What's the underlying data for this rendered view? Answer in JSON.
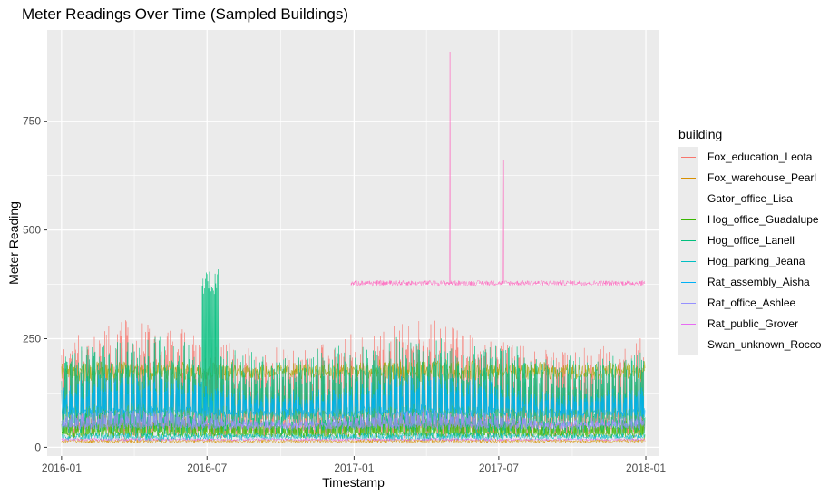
{
  "chart_data": {
    "type": "line",
    "title": "Meter Readings Over Time (Sampled Buildings)",
    "xlabel": "Timestamp",
    "ylabel": "Meter Reading",
    "x_ticks": [
      "2016-01",
      "2016-07",
      "2017-01",
      "2017-07",
      "2018-01"
    ],
    "y_ticks": [
      0,
      250,
      500,
      750
    ],
    "xlim": [
      "2015-12-14",
      "2018-01-18"
    ],
    "ylim": [
      -20,
      960
    ],
    "grid": true,
    "legend_title": "building",
    "legend_position": "right",
    "series": [
      {
        "name": "Fox_education_Leota",
        "color": "#F8766D",
        "start": "2016-01-01",
        "end": "2017-12-31",
        "base": 30,
        "amp": 225,
        "noise": 25,
        "weekly": true,
        "seasonal": 0.15,
        "spike": null
      },
      {
        "name": "Fox_warehouse_Pearl",
        "color": "#D89000",
        "start": "2016-01-01",
        "end": "2017-12-31",
        "base": 15,
        "amp": 8,
        "noise": 4,
        "weekly": false,
        "seasonal": 0.1,
        "spike": null
      },
      {
        "name": "Gator_office_Lisa",
        "color": "#A3A500",
        "start": "2016-01-01",
        "end": "2017-12-31",
        "base": 175,
        "amp": 35,
        "noise": 15,
        "weekly": false,
        "seasonal": 0.2,
        "spike": null
      },
      {
        "name": "Hog_office_Guadalupe",
        "color": "#39B600",
        "start": "2016-01-01",
        "end": "2017-12-31",
        "base": 25,
        "amp": 45,
        "noise": 10,
        "weekly": true,
        "seasonal": 0.3,
        "spike": null
      },
      {
        "name": "Hog_office_Lanell",
        "color": "#00BF7D",
        "start": "2016-01-01",
        "end": "2017-12-31",
        "base": 40,
        "amp": 190,
        "noise": 30,
        "weekly": true,
        "seasonal": 0.1,
        "spike": {
          "date": "2016-06-25",
          "days": 20,
          "value": 410
        }
      },
      {
        "name": "Hog_parking_Jeana",
        "color": "#00BFC4",
        "start": "2016-01-01",
        "end": "2017-12-31",
        "base": 25,
        "amp": 15,
        "noise": 5,
        "weekly": false,
        "seasonal": 0.2,
        "spike": null
      },
      {
        "name": "Rat_assembly_Aisha",
        "color": "#00B0F6",
        "start": "2016-01-01",
        "end": "2017-12-31",
        "base": 75,
        "amp": 70,
        "noise": 20,
        "weekly": true,
        "seasonal": 0.35,
        "spike": null
      },
      {
        "name": "Rat_office_Ashlee",
        "color": "#9590FF",
        "start": "2016-01-01",
        "end": "2017-12-31",
        "base": 45,
        "amp": 30,
        "noise": 10,
        "weekly": true,
        "seasonal": 0.4,
        "spike": null
      },
      {
        "name": "Rat_public_Grover",
        "color": "#E76BF3",
        "start": "2016-01-01",
        "end": "2017-12-31",
        "base": 18,
        "amp": 5,
        "noise": 3,
        "weekly": false,
        "seasonal": 0.1,
        "spike": null
      },
      {
        "name": "Swan_unknown_Rocco",
        "color": "#FF62BC",
        "start": "2016-12-28",
        "end": "2017-12-31",
        "base": 378,
        "amp": 0,
        "noise": 12,
        "weekly": false,
        "seasonal": 0.0,
        "spike": [
          {
            "date": "2017-05-01",
            "value": 910
          },
          {
            "date": "2017-07-07",
            "value": 660
          }
        ]
      }
    ]
  }
}
